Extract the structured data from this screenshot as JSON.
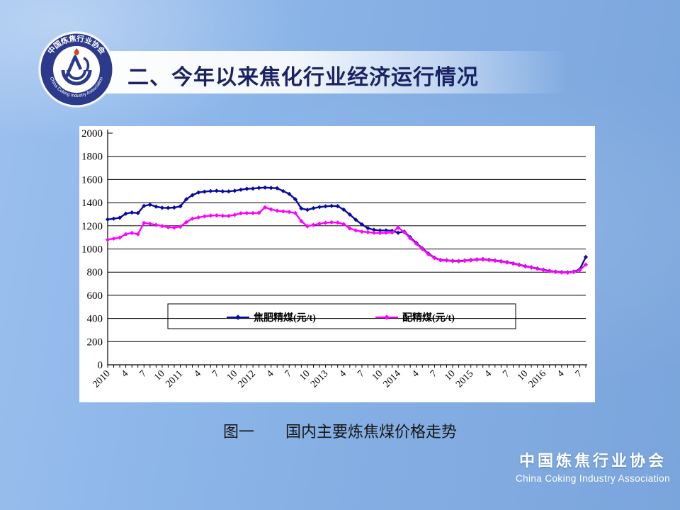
{
  "slide": {
    "title": "二、今年以来焦化行业经济运行情况",
    "caption": "图一　　国内主要炼焦煤价格走势",
    "footer": {
      "cn": "中国炼焦行业协会",
      "en": "China Coking Industry Association"
    },
    "logo": {
      "ring_text_top": "中国炼焦行业协会",
      "ring_text_bottom": "China Coking Industry Association"
    }
  },
  "colors": {
    "background": "#87b0e2",
    "header_band": "#ffffff",
    "title_text": "#1b2264",
    "panel": "#ffffff",
    "gridline": "#000000",
    "series_blue": "#0a0aa0",
    "series_magenta": "#ff00ff",
    "footer_text": "#ffffff",
    "logo_navy": "#2c3a8c"
  },
  "chart_data": {
    "type": "line",
    "title": "",
    "xlabel": "",
    "ylabel": "",
    "ylim": [
      0,
      2000
    ],
    "grid": "horizontal",
    "legend_position": "inside-bottom",
    "x_start_month": "2010-01",
    "x_end_month": "2016-08",
    "x_tick_every_n_months": 3,
    "x_tick_labels": [
      "2010",
      "4",
      "7",
      "10",
      "2011",
      "4",
      "7",
      "10",
      "2012",
      "4",
      "7",
      "10",
      "2013",
      "4",
      "7",
      "10",
      "2014",
      "4",
      "7",
      "10",
      "2015",
      "4",
      "7",
      "10",
      "2016",
      "4",
      "7"
    ],
    "y_ticks": [
      0,
      200,
      400,
      600,
      800,
      1000,
      1200,
      1400,
      1600,
      1800,
      2000
    ],
    "series": [
      {
        "name": "焦肥精煤(元/t)",
        "color": "#0a0aa0",
        "marker": "diamond",
        "values": [
          1255,
          1262,
          1270,
          1305,
          1315,
          1310,
          1372,
          1382,
          1366,
          1356,
          1355,
          1358,
          1368,
          1430,
          1465,
          1488,
          1495,
          1500,
          1502,
          1498,
          1497,
          1503,
          1512,
          1520,
          1522,
          1527,
          1530,
          1527,
          1525,
          1500,
          1475,
          1430,
          1350,
          1338,
          1352,
          1362,
          1368,
          1372,
          1370,
          1340,
          1298,
          1252,
          1212,
          1180,
          1165,
          1160,
          1160,
          1158,
          1140,
          1150,
          1100,
          1052,
          1005,
          960,
          925,
          905,
          903,
          898,
          896,
          900,
          905,
          910,
          912,
          907,
          901,
          894,
          886,
          876,
          864,
          852,
          842,
          832,
          821,
          811,
          804,
          800,
          798,
          804,
          824,
          930
        ]
      },
      {
        "name": "配精煤(元/t)",
        "color": "#ff00ff",
        "marker": "diamond",
        "values": [
          1080,
          1090,
          1098,
          1128,
          1138,
          1128,
          1225,
          1218,
          1208,
          1198,
          1188,
          1185,
          1192,
          1232,
          1262,
          1272,
          1282,
          1288,
          1290,
          1287,
          1285,
          1295,
          1308,
          1310,
          1310,
          1312,
          1360,
          1342,
          1330,
          1325,
          1320,
          1310,
          1240,
          1196,
          1208,
          1218,
          1226,
          1230,
          1228,
          1214,
          1178,
          1160,
          1150,
          1145,
          1140,
          1138,
          1140,
          1142,
          1185,
          1145,
          1092,
          1045,
          1000,
          955,
          922,
          902,
          900,
          895,
          893,
          897,
          902,
          907,
          909,
          904,
          898,
          891,
          883,
          873,
          861,
          849,
          839,
          829,
          818,
          808,
          801,
          797,
          795,
          801,
          818,
          865
        ]
      }
    ]
  }
}
